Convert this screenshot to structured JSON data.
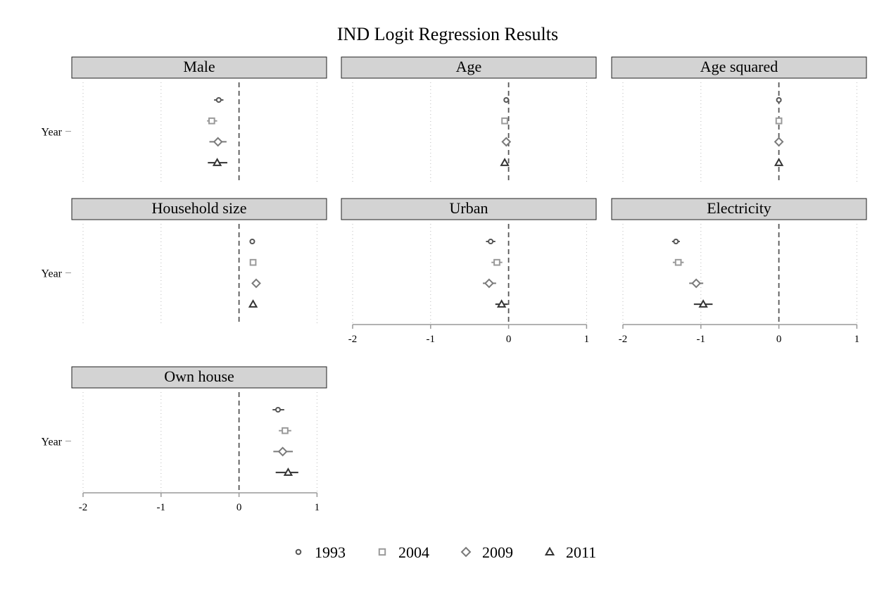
{
  "chart_data": {
    "type": "scatter",
    "title": "IND Logit Regression Results",
    "y_axis_label": "Year",
    "xlim": [
      -2,
      1
    ],
    "x_ticks": [
      "-2",
      "-1",
      "0",
      "1"
    ],
    "reference_line": 0,
    "grid": "vertical dotted",
    "legend_position": "bottom",
    "series": [
      {
        "name": "1993",
        "marker": "circle",
        "color": "#555555"
      },
      {
        "name": "2004",
        "marker": "square",
        "color": "#9a9a9a"
      },
      {
        "name": "2009",
        "marker": "diamond",
        "color": "#7a7a7a"
      },
      {
        "name": "2011",
        "marker": "triangle",
        "color": "#333333"
      }
    ],
    "panels": [
      {
        "label": "Male",
        "estimates": [
          {
            "year": "1993",
            "est": -0.26,
            "lo": -0.32,
            "hi": -0.2
          },
          {
            "year": "2004",
            "est": -0.35,
            "lo": -0.41,
            "hi": -0.28
          },
          {
            "year": "2009",
            "est": -0.27,
            "lo": -0.38,
            "hi": -0.16
          },
          {
            "year": "2011",
            "est": -0.28,
            "lo": -0.4,
            "hi": -0.15
          }
        ]
      },
      {
        "label": "Age",
        "estimates": [
          {
            "year": "1993",
            "est": -0.03,
            "lo": -0.05,
            "hi": -0.01
          },
          {
            "year": "2004",
            "est": -0.05,
            "lo": -0.07,
            "hi": -0.03
          },
          {
            "year": "2009",
            "est": -0.03,
            "lo": -0.05,
            "hi": -0.01
          },
          {
            "year": "2011",
            "est": -0.05,
            "lo": -0.07,
            "hi": -0.03
          }
        ]
      },
      {
        "label": "Age squared",
        "estimates": [
          {
            "year": "1993",
            "est": 0.0,
            "lo": -0.01,
            "hi": 0.01
          },
          {
            "year": "2004",
            "est": 0.0,
            "lo": -0.01,
            "hi": 0.01
          },
          {
            "year": "2009",
            "est": 0.0,
            "lo": -0.01,
            "hi": 0.01
          },
          {
            "year": "2011",
            "est": 0.0,
            "lo": -0.01,
            "hi": 0.01
          }
        ]
      },
      {
        "label": "Household size",
        "estimates": [
          {
            "year": "1993",
            "est": 0.17,
            "lo": 0.15,
            "hi": 0.19
          },
          {
            "year": "2004",
            "est": 0.18,
            "lo": 0.16,
            "hi": 0.2
          },
          {
            "year": "2009",
            "est": 0.22,
            "lo": 0.19,
            "hi": 0.25
          },
          {
            "year": "2011",
            "est": 0.18,
            "lo": 0.16,
            "hi": 0.21
          }
        ]
      },
      {
        "label": "Urban",
        "estimates": [
          {
            "year": "1993",
            "est": -0.23,
            "lo": -0.29,
            "hi": -0.17
          },
          {
            "year": "2004",
            "est": -0.15,
            "lo": -0.22,
            "hi": -0.08
          },
          {
            "year": "2009",
            "est": -0.25,
            "lo": -0.33,
            "hi": -0.16
          },
          {
            "year": "2011",
            "est": -0.09,
            "lo": -0.17,
            "hi": -0.01
          }
        ]
      },
      {
        "label": "Electricity",
        "estimates": [
          {
            "year": "1993",
            "est": -1.32,
            "lo": -1.37,
            "hi": -1.27
          },
          {
            "year": "2004",
            "est": -1.29,
            "lo": -1.36,
            "hi": -1.22
          },
          {
            "year": "2009",
            "est": -1.06,
            "lo": -1.15,
            "hi": -0.97
          },
          {
            "year": "2011",
            "est": -0.97,
            "lo": -1.09,
            "hi": -0.85
          }
        ]
      },
      {
        "label": "Own house",
        "estimates": [
          {
            "year": "1993",
            "est": 0.5,
            "lo": 0.43,
            "hi": 0.58
          },
          {
            "year": "2004",
            "est": 0.59,
            "lo": 0.51,
            "hi": 0.67
          },
          {
            "year": "2009",
            "est": 0.56,
            "lo": 0.44,
            "hi": 0.69
          },
          {
            "year": "2011",
            "est": 0.63,
            "lo": 0.47,
            "hi": 0.76
          }
        ]
      }
    ]
  }
}
